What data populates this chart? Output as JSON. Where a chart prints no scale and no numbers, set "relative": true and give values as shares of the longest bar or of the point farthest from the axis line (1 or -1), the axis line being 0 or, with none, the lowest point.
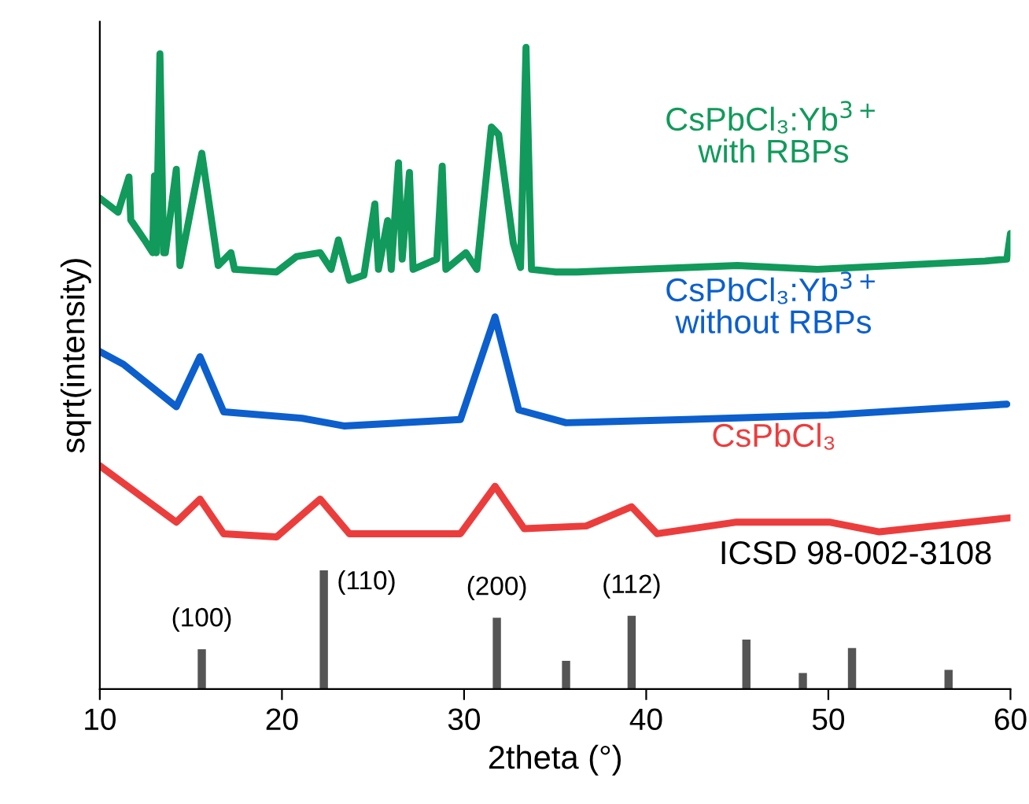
{
  "chart_data": {
    "type": "line",
    "relative": true,
    "xlabel": "2theta (°)",
    "ylabel": "sqrt(intensity)",
    "xlim": [
      10,
      60
    ],
    "xticks": [
      10,
      20,
      30,
      40,
      50,
      60
    ],
    "grid": false,
    "legend": false,
    "series": [
      {
        "name": "CsPbCl₃:Yb$^{3+}$\nwith RBPs",
        "color": "#119a5b",
        "x": [
          10,
          11.0,
          11.6,
          11.7,
          12.45,
          12.9,
          13.0,
          13.1,
          13.3,
          13.5,
          13.6,
          14.2,
          14.4,
          15.6,
          16.5,
          17.2,
          17.4,
          19.7,
          20.8,
          22.1,
          22.7,
          23.1,
          23.7,
          24.5,
          25.1,
          25.3,
          25.8,
          26.0,
          26.4,
          26.6,
          27.0,
          27.2,
          28.5,
          28.8,
          29.0,
          30.1,
          30.7,
          31.5,
          31.9,
          32.7,
          33.1,
          33.4,
          33.7,
          35.0,
          36.2,
          45.0,
          49.4,
          58.6,
          59.8,
          60
        ],
        "values": [
          0.765,
          0.743,
          0.798,
          0.731,
          0.7,
          0.68,
          0.8,
          0.68,
          0.99,
          0.68,
          0.68,
          0.81,
          0.66,
          0.835,
          0.66,
          0.68,
          0.654,
          0.65,
          0.674,
          0.68,
          0.654,
          0.7,
          0.637,
          0.645,
          0.756,
          0.654,
          0.73,
          0.654,
          0.82,
          0.67,
          0.805,
          0.654,
          0.67,
          0.815,
          0.654,
          0.68,
          0.654,
          0.876,
          0.864,
          0.695,
          0.657,
          1.0,
          0.654,
          0.65,
          0.65,
          0.66,
          0.654,
          0.667,
          0.67,
          0.71
        ]
      },
      {
        "name": "CsPbCl₃:Yb$^{3+}$\nwithout RBPs",
        "color": "#0c5fcd",
        "x": [
          10,
          11.3,
          14.2,
          15.5,
          16.8,
          21.1,
          23.4,
          29.8,
          31.7,
          33.0,
          35.6,
          42.2,
          50,
          59.8
        ],
        "values": [
          0.526,
          0.506,
          0.44,
          0.518,
          0.432,
          0.422,
          0.41,
          0.42,
          0.58,
          0.435,
          0.415,
          0.42,
          0.427,
          0.444
        ]
      },
      {
        "name": "CsPbCl₃",
        "color": "#ec3d3d",
        "x": [
          10,
          14.2,
          15.5,
          16.8,
          19.7,
          22.1,
          23.7,
          29.8,
          31.7,
          33.3,
          36.7,
          39.2,
          40.6,
          44.9,
          50.1,
          52.8,
          60
        ],
        "values": [
          0.348,
          0.26,
          0.296,
          0.242,
          0.237,
          0.296,
          0.242,
          0.242,
          0.316,
          0.25,
          0.254,
          0.284,
          0.242,
          0.26,
          0.26,
          0.245,
          0.267
        ]
      },
      {
        "type": "bar",
        "color": "#555555",
        "x": [
          15.6,
          22.3,
          31.8,
          35.6,
          39.2,
          45.5,
          48.6,
          51.3,
          56.6
        ],
        "values": [
          0.062,
          0.185,
          0.111,
          0.044,
          0.114,
          0.077,
          0.025,
          0.064,
          0.03
        ]
      }
    ],
    "annotations": [
      {
        "text": "(100)",
        "x": 15.6,
        "y": 0.062
      },
      {
        "text": "(110)",
        "x": 22.3,
        "y": 0.185
      },
      {
        "text": "(200)",
        "x": 31.8,
        "y": 0.111
      },
      {
        "text": "(112)",
        "x": 39.2,
        "y": 0.114
      },
      "ICSD 98-002-3108"
    ]
  }
}
